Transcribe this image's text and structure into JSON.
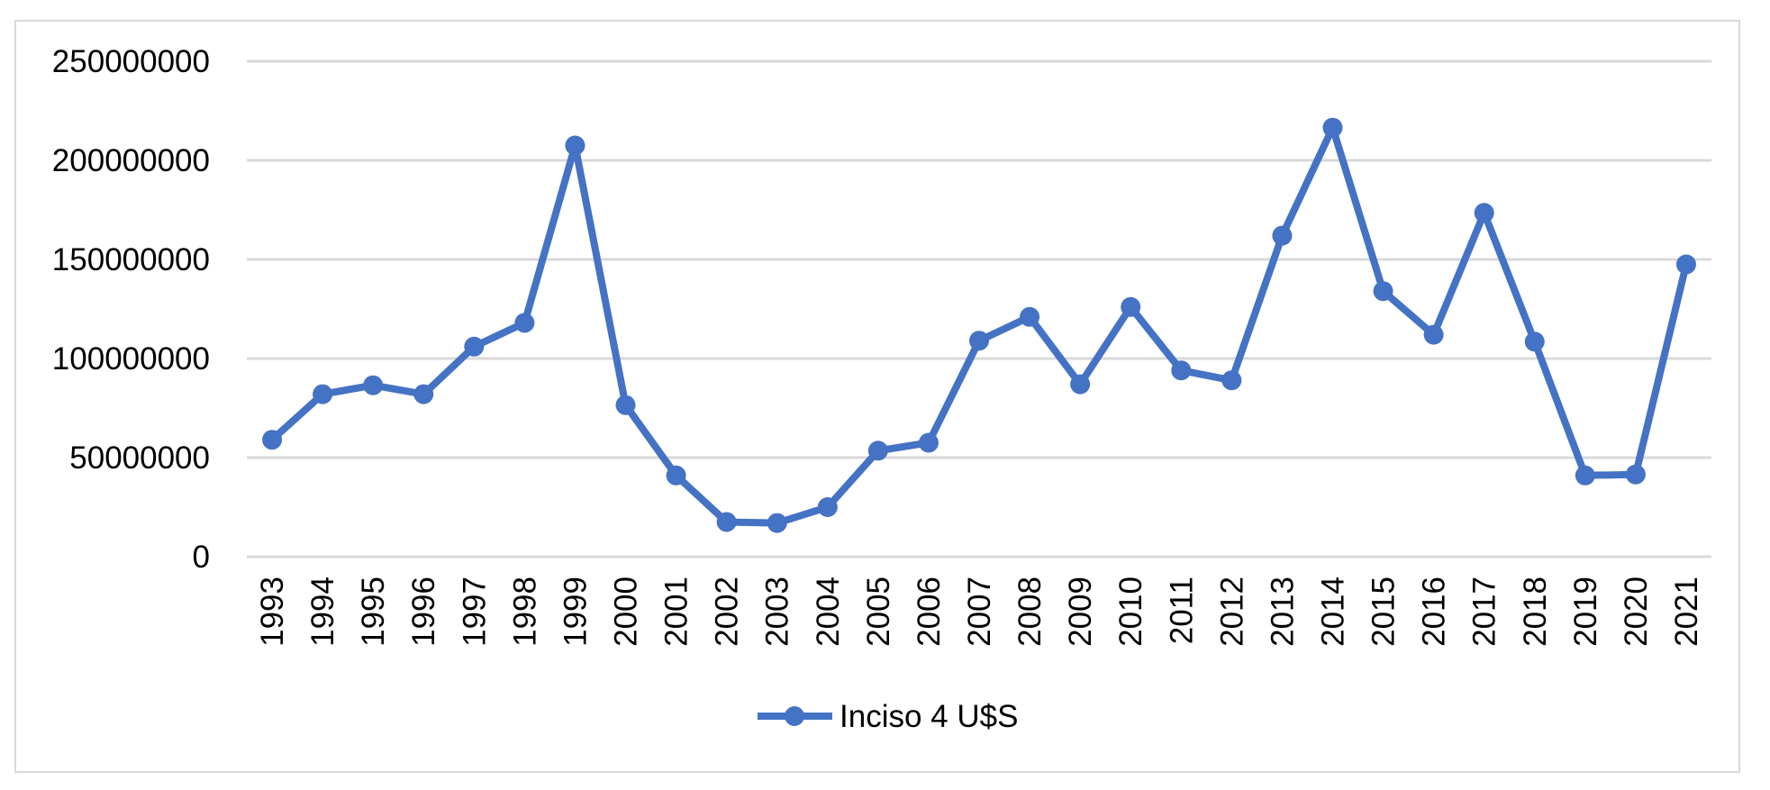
{
  "chart_data": {
    "type": "line",
    "title": "",
    "xlabel": "",
    "ylabel": "",
    "ylim": [
      0,
      250000000
    ],
    "yticks": [
      0,
      50000000,
      100000000,
      150000000,
      200000000,
      250000000
    ],
    "grid": true,
    "legend_position": "bottom",
    "categories": [
      "1993",
      "1994",
      "1995",
      "1996",
      "1997",
      "1998",
      "1999",
      "2000",
      "2001",
      "2002",
      "2003",
      "2004",
      "2005",
      "2006",
      "2007",
      "2008",
      "2009",
      "2010",
      "2011",
      "2012",
      "2013",
      "2014",
      "2015",
      "2016",
      "2017",
      "2018",
      "2019",
      "2020",
      "2021"
    ],
    "series": [
      {
        "name": "Inciso 4 U$S",
        "color": "#4472c4",
        "values": [
          59000000,
          82000000,
          86500000,
          82000000,
          106000000,
          118000000,
          207500000,
          76500000,
          41000000,
          17500000,
          17000000,
          25000000,
          53500000,
          57500000,
          109000000,
          121000000,
          87000000,
          126000000,
          94000000,
          89000000,
          162000000,
          216500000,
          134000000,
          112000000,
          173500000,
          108500000,
          41000000,
          41500000,
          147500000
        ]
      }
    ]
  }
}
